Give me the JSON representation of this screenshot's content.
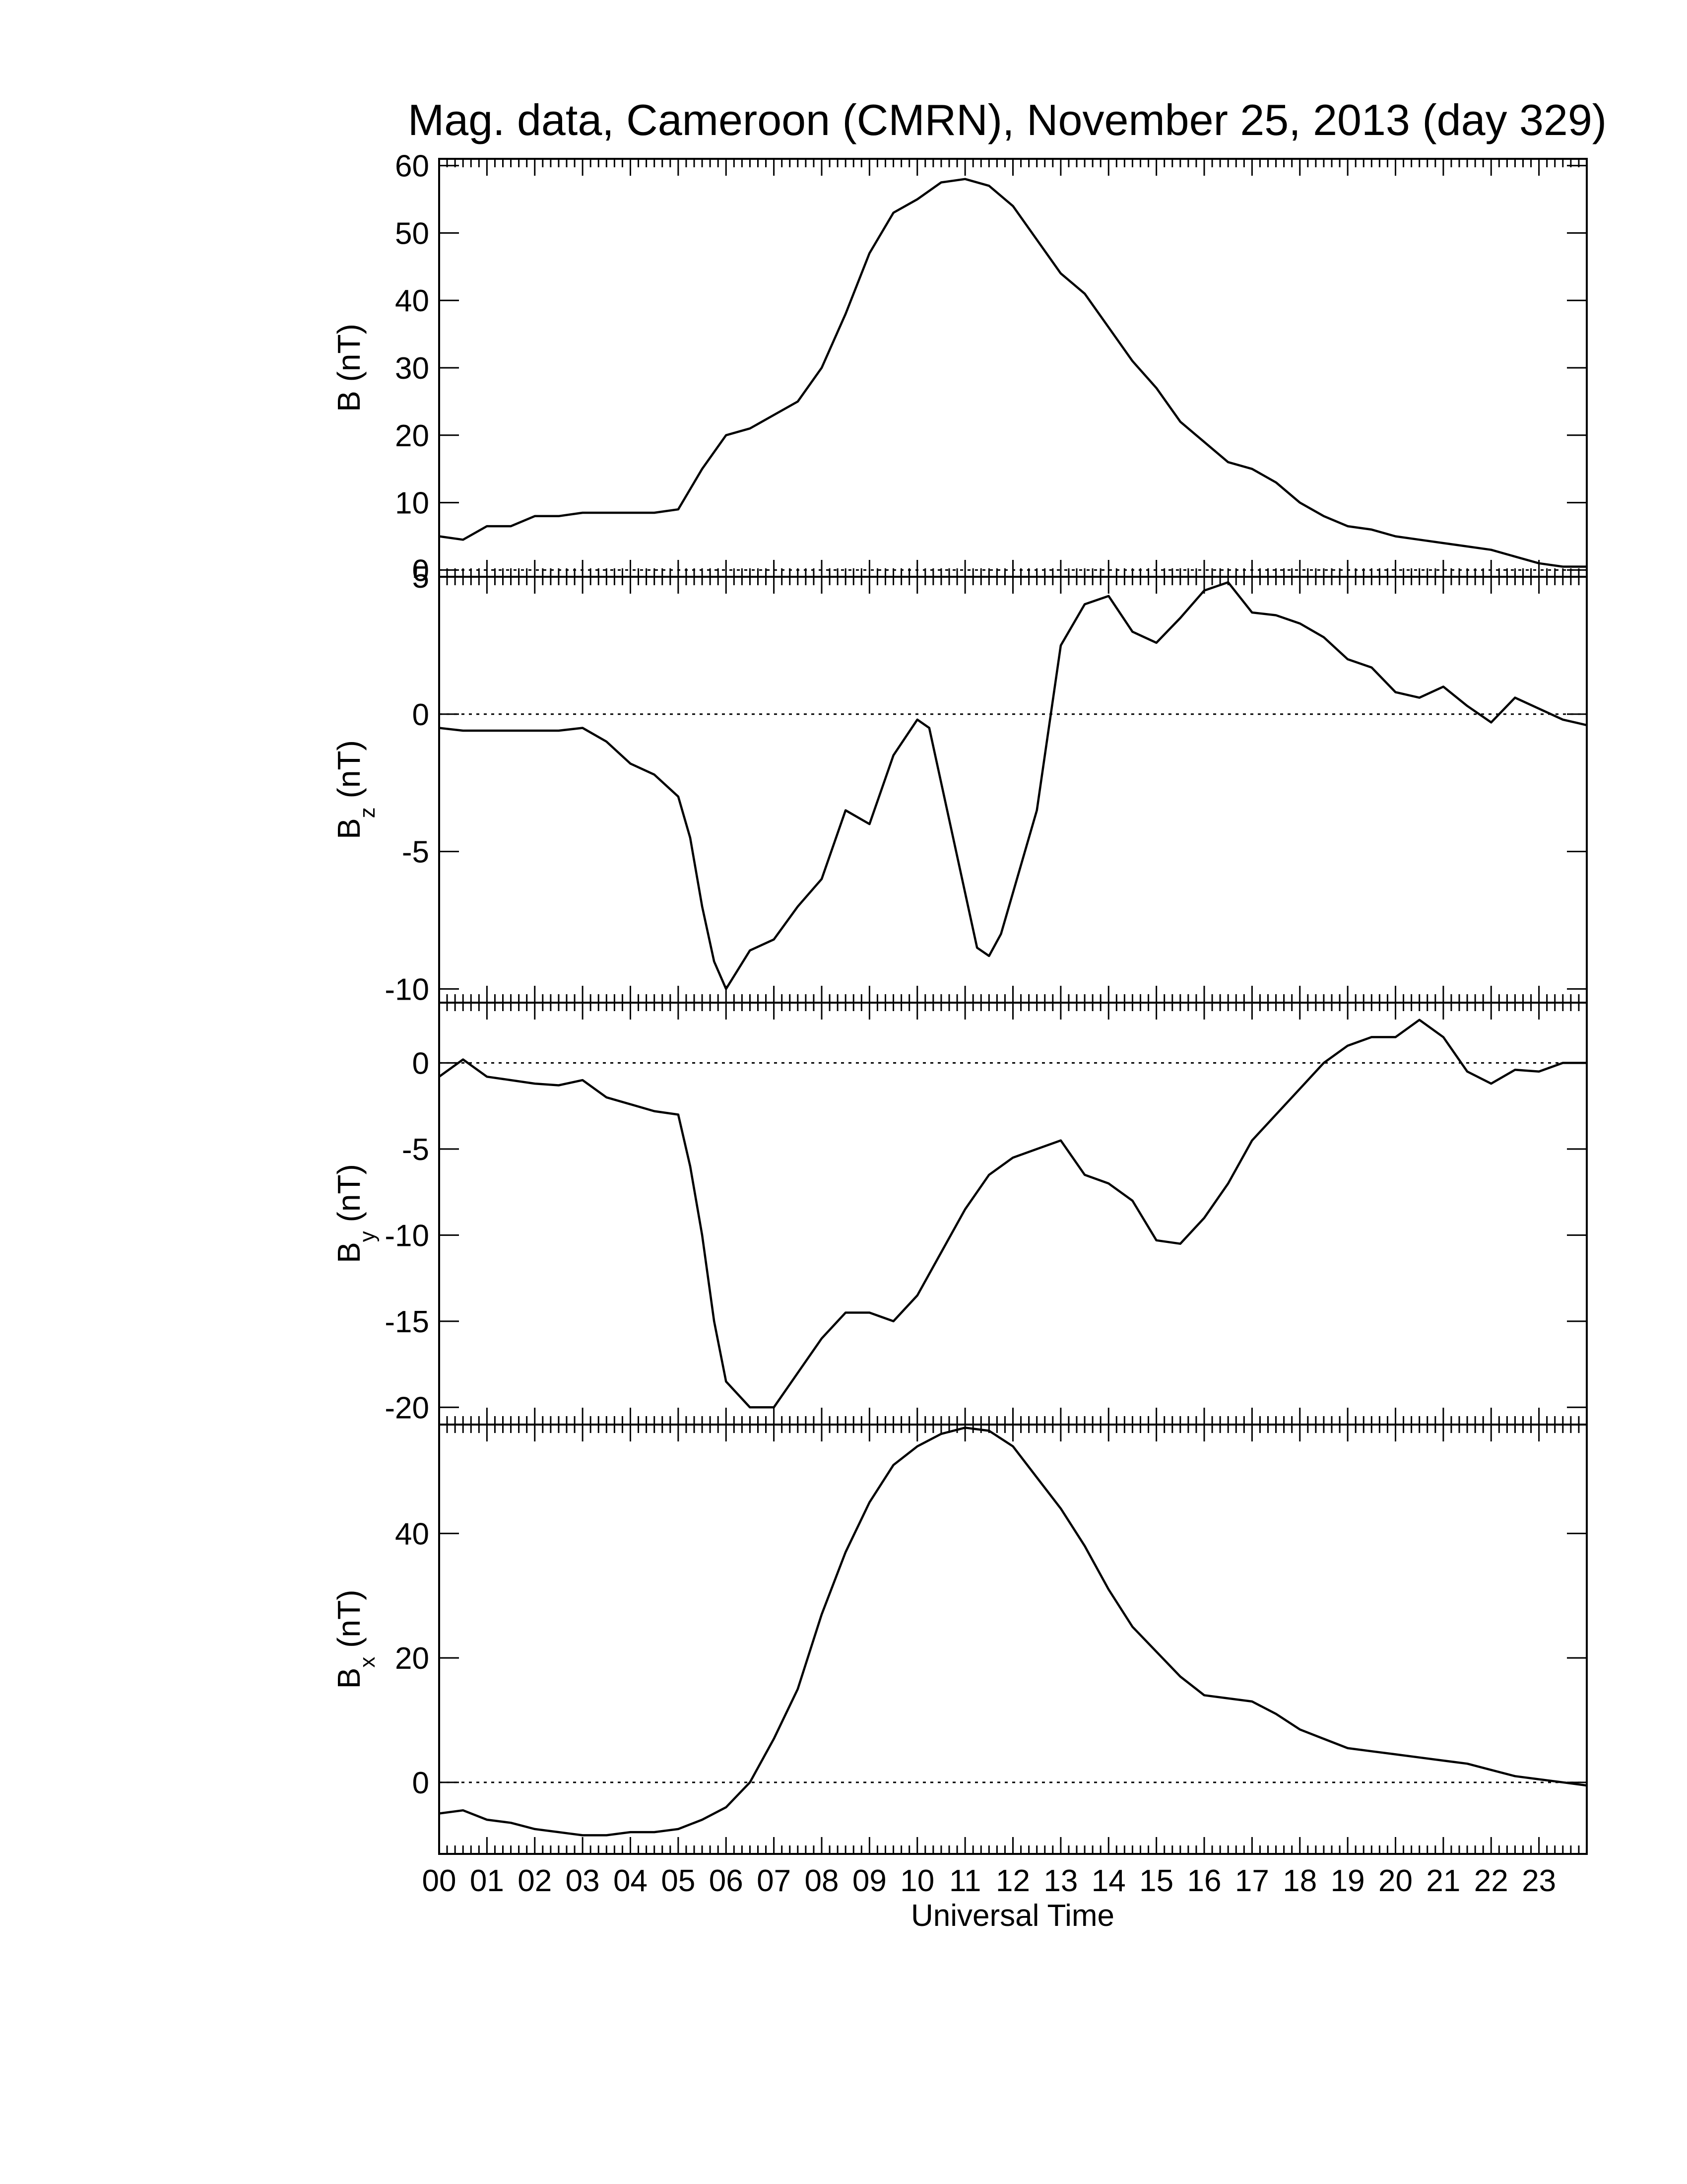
{
  "title": "Mag. data, Cameroon (CMRN), November 25, 2013 (day 329)",
  "xlabel": "Universal Time",
  "x_tick_labels": [
    "00",
    "01",
    "02",
    "03",
    "04",
    "05",
    "06",
    "07",
    "08",
    "09",
    "10",
    "11",
    "12",
    "13",
    "14",
    "15",
    "16",
    "17",
    "18",
    "19",
    "20",
    "21",
    "22",
    "23"
  ],
  "colors": {
    "line": "#000000",
    "zero_line": "#000000",
    "background": "#ffffff"
  },
  "chart_data": [
    {
      "type": "line",
      "ylabel": "B (nT)",
      "ylabel_main": "B",
      "ylabel_sub": "",
      "ylabel_unit": " (nT)",
      "xlim": [
        0,
        24
      ],
      "ylim": [
        -1,
        61
      ],
      "yticks": [
        0,
        10,
        20,
        30,
        40,
        50,
        60
      ],
      "zero_line": true,
      "x": [
        0,
        0.5,
        1,
        1.5,
        2,
        2.5,
        3,
        3.5,
        4,
        4.5,
        5,
        5.5,
        6,
        6.5,
        7,
        7.5,
        8,
        8.5,
        9,
        9.5,
        10,
        10.5,
        11,
        11.5,
        12,
        12.5,
        13,
        13.5,
        14,
        14.5,
        15,
        15.5,
        16,
        16.5,
        17,
        17.5,
        18,
        18.5,
        19,
        19.5,
        20,
        20.5,
        21,
        21.5,
        22,
        22.5,
        23,
        23.5,
        24
      ],
      "values": [
        5,
        4.5,
        6.5,
        6.5,
        8,
        8,
        8.5,
        8.5,
        8.5,
        8.5,
        9,
        15,
        20,
        21,
        23,
        25,
        30,
        38,
        47,
        53,
        55,
        57.5,
        58,
        57,
        54,
        49,
        44,
        41,
        36,
        31,
        27,
        22,
        19,
        16,
        15,
        13,
        10,
        8,
        6.5,
        6,
        5,
        4.5,
        4,
        3.5,
        3,
        2,
        1,
        0.5,
        0.5
      ]
    },
    {
      "type": "line",
      "ylabel": "Bz (nT)",
      "ylabel_main": "B",
      "ylabel_sub": "z",
      "ylabel_unit": " (nT)",
      "xlim": [
        0,
        24
      ],
      "ylim": [
        -10.5,
        5
      ],
      "yticks": [
        -10,
        -5,
        0,
        5
      ],
      "zero_line": true,
      "x": [
        0,
        0.5,
        1,
        1.5,
        2,
        2.5,
        3,
        3.5,
        4,
        4.5,
        5,
        5.25,
        5.5,
        5.75,
        6,
        6.5,
        7,
        7.5,
        8,
        8.5,
        9,
        9.5,
        10,
        10.25,
        10.5,
        11,
        11.25,
        11.5,
        11.75,
        12,
        12.5,
        13,
        13.5,
        14,
        14.5,
        15,
        15.5,
        16,
        16.5,
        17,
        17.5,
        18,
        18.5,
        19,
        19.5,
        20,
        20.5,
        21,
        21.5,
        22,
        22.5,
        23,
        23.5,
        24
      ],
      "values": [
        -0.5,
        -0.6,
        -0.6,
        -0.6,
        -0.6,
        -0.6,
        -0.5,
        -1,
        -1.8,
        -2.2,
        -3,
        -4.5,
        -7,
        -9,
        -10,
        -8.6,
        -8.2,
        -7,
        -6,
        -3.5,
        -4,
        -1.5,
        -0.2,
        -0.5,
        -2.5,
        -6.5,
        -8.5,
        -8.8,
        -8,
        -6.5,
        -3.5,
        2.5,
        4,
        4.3,
        3,
        2.6,
        3.5,
        4.5,
        4.8,
        3.7,
        3.6,
        3.3,
        2.8,
        2.0,
        1.7,
        0.8,
        0.6,
        1.0,
        0.3,
        -0.3,
        0.6,
        0.2,
        -0.2,
        -0.4
      ]
    },
    {
      "type": "line",
      "ylabel": "By (nT)",
      "ylabel_main": "B",
      "ylabel_sub": "y",
      "ylabel_unit": " (nT)",
      "xlim": [
        0,
        24
      ],
      "ylim": [
        -21,
        3.5
      ],
      "yticks": [
        -20,
        -15,
        -10,
        -5,
        0
      ],
      "zero_line": true,
      "x": [
        0,
        0.5,
        1,
        1.5,
        2,
        2.5,
        3,
        3.5,
        4,
        4.5,
        5,
        5.25,
        5.5,
        5.75,
        6,
        6.5,
        7,
        7.5,
        8,
        8.5,
        9,
        9.5,
        10,
        10.5,
        11,
        11.5,
        12,
        12.5,
        13,
        13.5,
        14,
        14.5,
        15,
        15.5,
        16,
        16.5,
        17,
        17.5,
        18,
        18.5,
        19,
        19.5,
        20,
        20.5,
        21,
        21.5,
        22,
        22.5,
        23,
        23.5,
        24
      ],
      "values": [
        -0.8,
        0.2,
        -0.8,
        -1,
        -1.2,
        -1.3,
        -1,
        -2,
        -2.4,
        -2.8,
        -3,
        -6,
        -10,
        -15,
        -18.5,
        -20,
        -20,
        -18,
        -16,
        -14.5,
        -14.5,
        -15,
        -13.5,
        -11,
        -8.5,
        -6.5,
        -5.5,
        -5,
        -4.5,
        -6.5,
        -7,
        -8,
        -10.3,
        -10.5,
        -9,
        -7,
        -4.5,
        -3,
        -1.5,
        0,
        1,
        1.5,
        1.5,
        2.5,
        1.5,
        -0.5,
        -1.2,
        -0.4,
        -0.5,
        0,
        0
      ]
    },
    {
      "type": "line",
      "ylabel": "Bx (nT)",
      "ylabel_main": "B",
      "ylabel_sub": "x",
      "ylabel_unit": " (nT)",
      "xlim": [
        0,
        24
      ],
      "ylim": [
        -11.5,
        57.5
      ],
      "yticks": [
        0,
        20,
        40
      ],
      "zero_line": true,
      "x": [
        0,
        0.5,
        1,
        1.5,
        2,
        2.5,
        3,
        3.5,
        4,
        4.5,
        5,
        5.5,
        6,
        6.5,
        7,
        7.5,
        8,
        8.5,
        9,
        9.5,
        10,
        10.5,
        11,
        11.5,
        12,
        12.5,
        13,
        13.5,
        14,
        14.5,
        15,
        15.5,
        16,
        16.5,
        17,
        17.5,
        18,
        18.5,
        19,
        19.5,
        20,
        20.5,
        21,
        21.5,
        22,
        22.5,
        23,
        23.5,
        24
      ],
      "values": [
        -5,
        -4.5,
        -6,
        -6.5,
        -7.5,
        -8,
        -8.5,
        -8.5,
        -8,
        -8,
        -7.5,
        -6,
        -4,
        0,
        7,
        15,
        27,
        37,
        45,
        51,
        54,
        56,
        57,
        56.5,
        54,
        49,
        44,
        38,
        31,
        25,
        21,
        17,
        14,
        13.5,
        13,
        11,
        8.5,
        7,
        5.5,
        5,
        4.5,
        4,
        3.5,
        3,
        2,
        1,
        0.5,
        0,
        -0.5
      ]
    }
  ]
}
